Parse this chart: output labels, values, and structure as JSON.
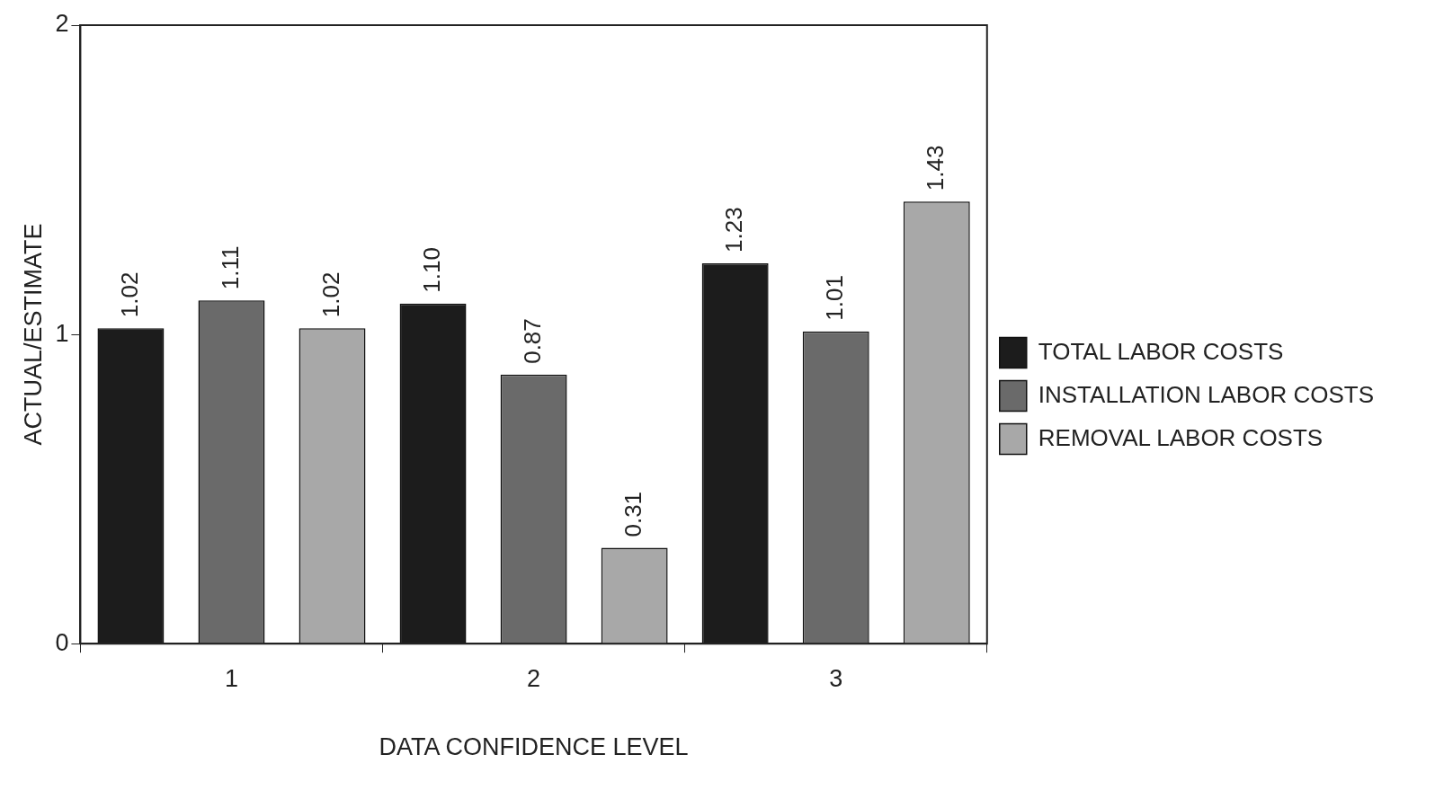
{
  "chart_data": {
    "type": "bar",
    "xlabel": "DATA CONFIDENCE LEVEL",
    "ylabel": "ACTUAL/ESTIMATE",
    "categories": [
      "1",
      "2",
      "3"
    ],
    "series": [
      {
        "name": "TOTAL LABOR COSTS",
        "color": "#1c1c1c",
        "values": [
          1.02,
          1.1,
          1.23
        ],
        "value_labels": [
          "1.02",
          "1.10",
          "1.23"
        ]
      },
      {
        "name": "INSTALLATION LABOR COSTS",
        "color": "#6a6a6a",
        "values": [
          1.11,
          0.87,
          1.01
        ],
        "value_labels": [
          "1.11",
          "0.87",
          "1.01"
        ]
      },
      {
        "name": "REMOVAL LABOR COSTS",
        "color": "#a8a8a8",
        "values": [
          1.02,
          0.31,
          1.43
        ],
        "value_labels": [
          "1.02",
          "0.31",
          "1.43"
        ]
      }
    ],
    "ylim": [
      0,
      2
    ],
    "yticks": [
      0,
      1,
      2
    ],
    "legend": "right",
    "grid": false
  }
}
